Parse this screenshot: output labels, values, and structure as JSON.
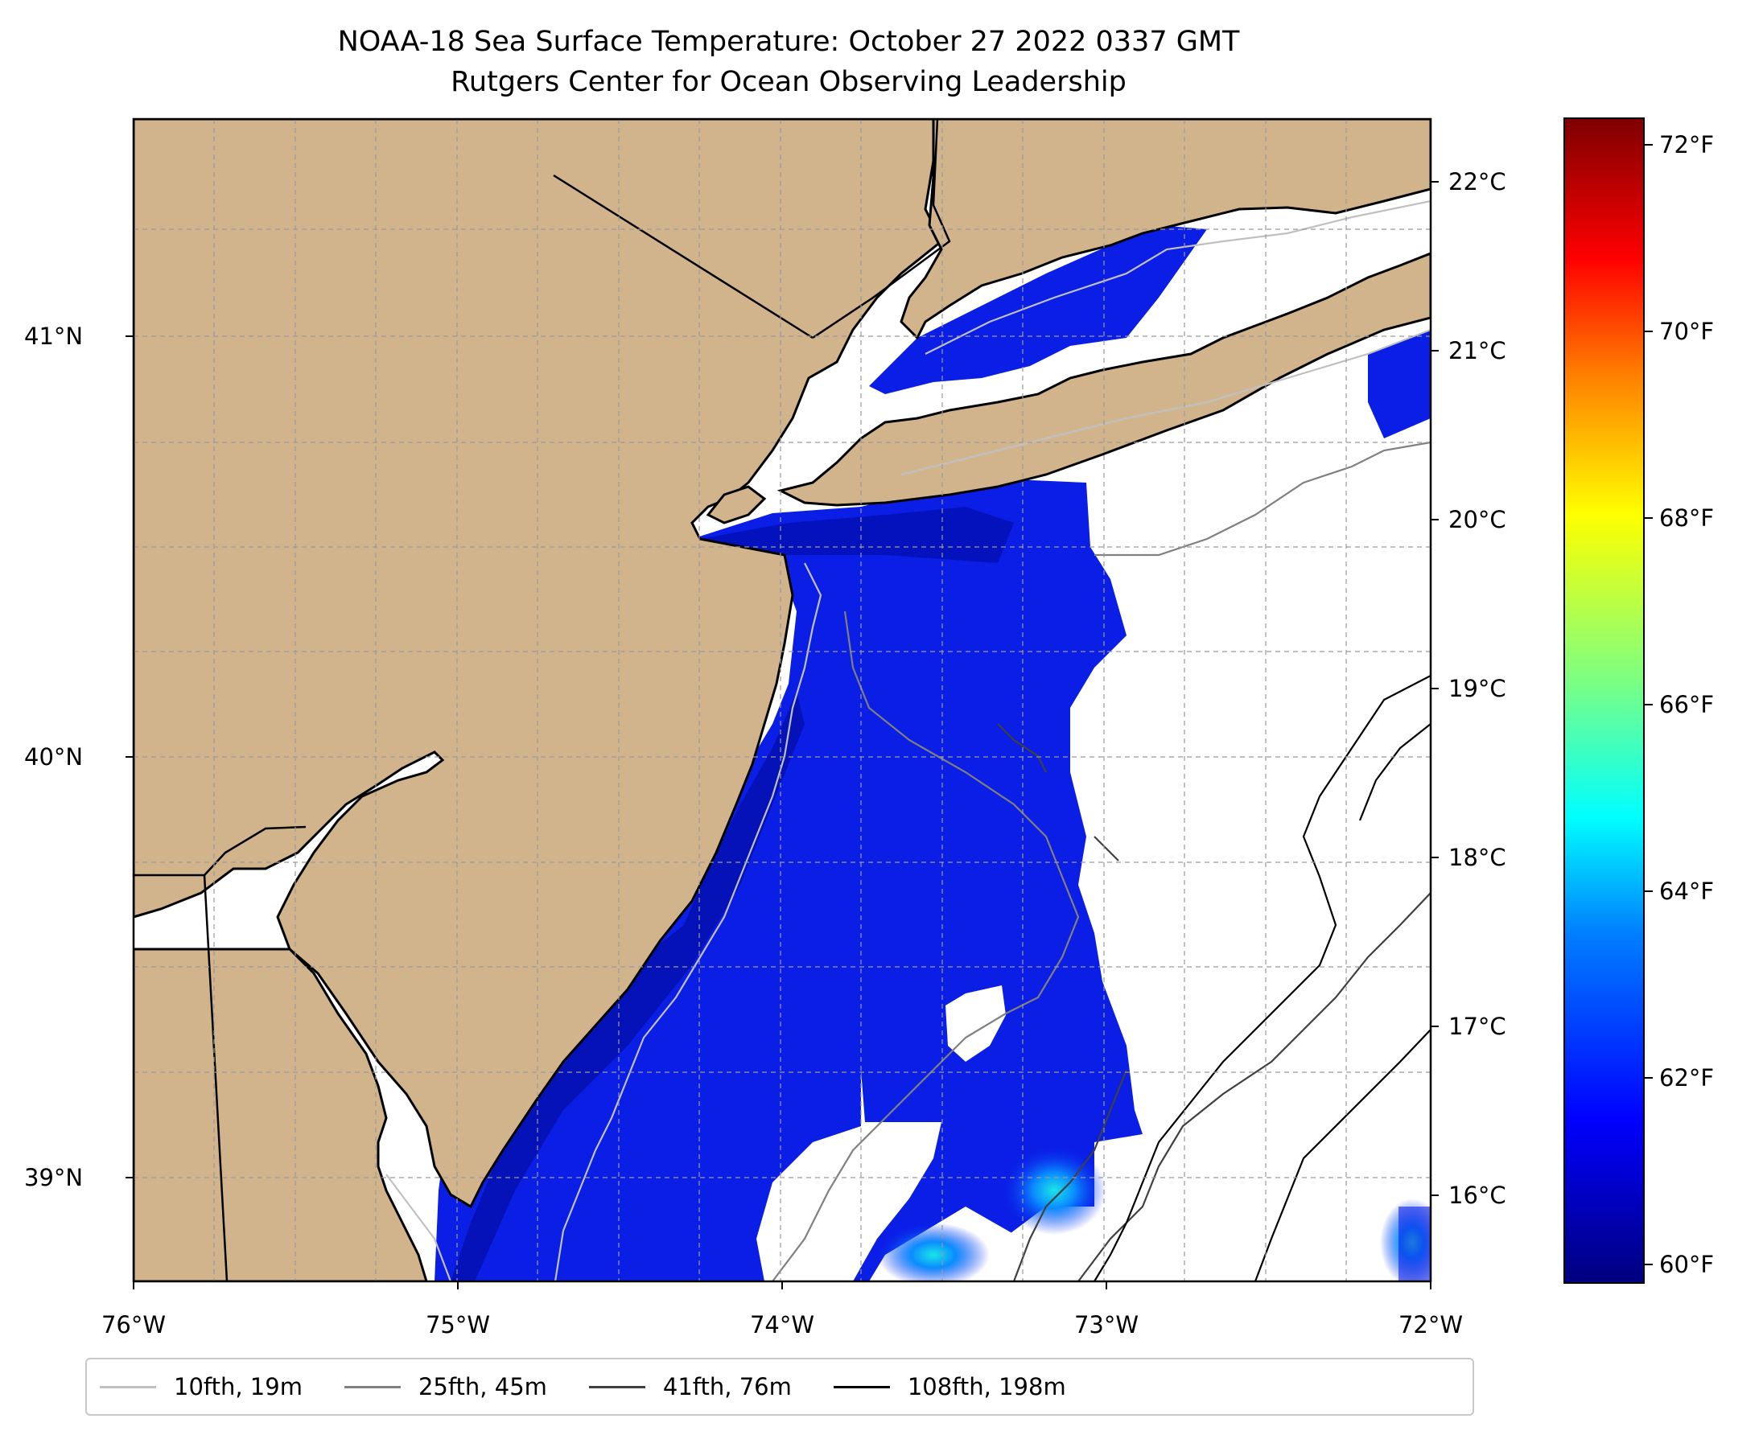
{
  "title": {
    "line1": "NOAA-18 Sea Surface Temperature: October 27 2022 0337 GMT",
    "line2": "Rutgers Center for Ocean Observing Leadership"
  },
  "map": {
    "longitude_range": [
      -76,
      -72
    ],
    "latitude_range": [
      38.75,
      41.52
    ],
    "x_ticks": [
      "76°W",
      "75°W",
      "74°W",
      "73°W",
      "72°W"
    ],
    "y_ticks": [
      "41°N",
      "40°N",
      "39°N"
    ],
    "land_color": "#d2b48c",
    "ocean_no_data_color": "#ffffff",
    "gridlines": true
  },
  "colorbar": {
    "celsius_ticks": [
      "22°C",
      "21°C",
      "20°C",
      "19°C",
      "18°C",
      "17°C",
      "16°C"
    ],
    "fahrenheit_ticks": [
      "72°F",
      "70°F",
      "68°F",
      "66°F",
      "64°F",
      "62°F",
      "60°F"
    ],
    "colormap": "jet"
  },
  "legend": {
    "items": [
      {
        "label": "10fth, 19m",
        "color": "#c0c0c0"
      },
      {
        "label": "25fth, 45m",
        "color": "#808080"
      },
      {
        "label": "41fth, 76m",
        "color": "#404040"
      },
      {
        "label": "108fth, 198m",
        "color": "#000000"
      }
    ]
  }
}
